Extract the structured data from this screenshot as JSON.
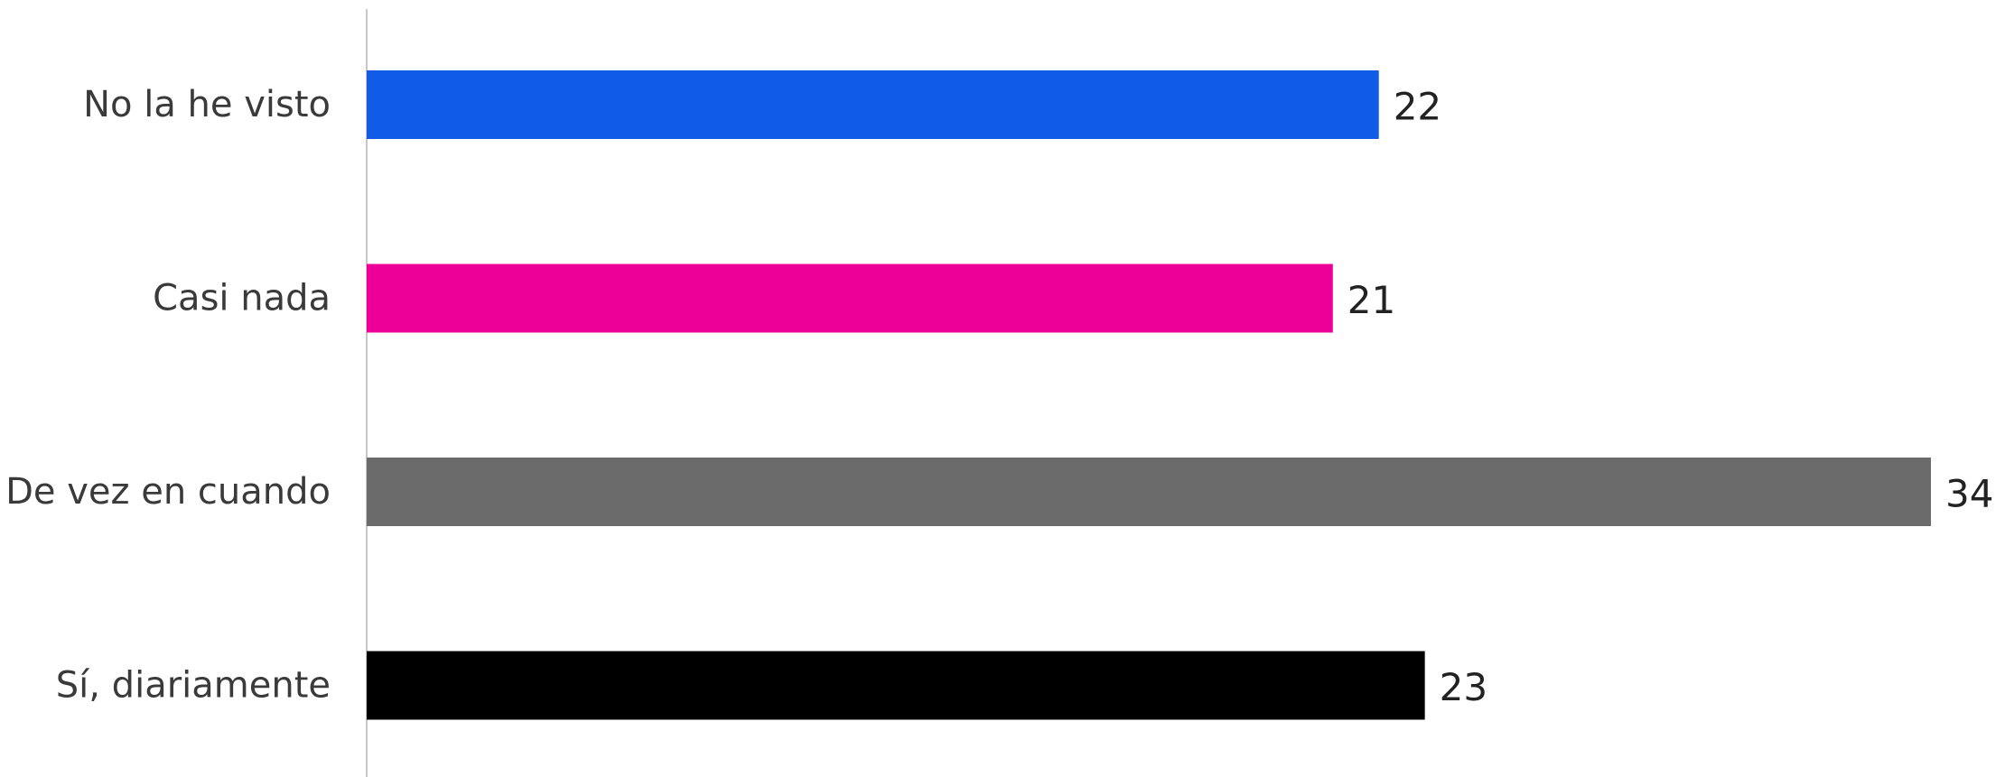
{
  "chart_data": {
    "type": "bar",
    "orientation": "horizontal",
    "categories": [
      "No la he visto",
      "Casi nada",
      "De vez en cuando",
      "Sí, diariamente"
    ],
    "values": [
      22,
      21,
      34,
      23
    ],
    "colors": [
      "#105CE6",
      "#EC0098",
      "#6B6B6B",
      "#000000"
    ],
    "data_labels": [
      "22",
      "21",
      "34",
      "23"
    ],
    "title": "",
    "xlabel": "",
    "ylabel": "",
    "xlim": [
      0,
      34
    ],
    "grid": false,
    "legend": "none"
  }
}
